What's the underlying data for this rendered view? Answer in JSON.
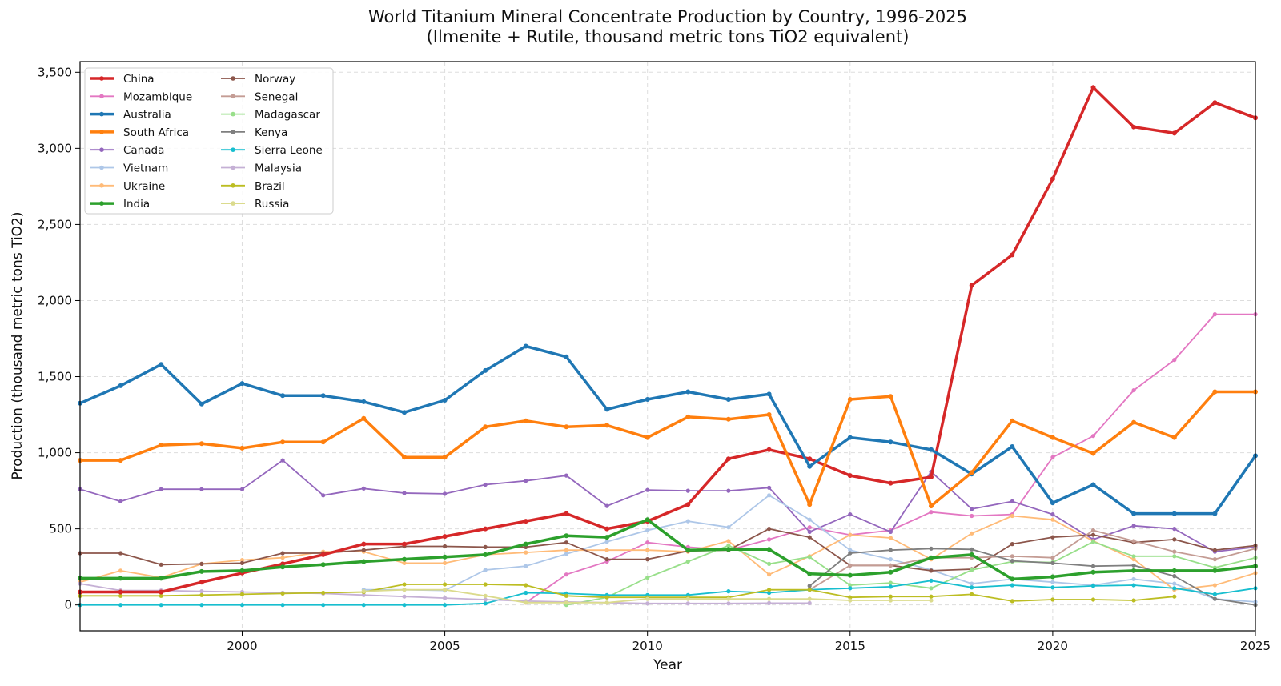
{
  "chart_data": {
    "type": "line",
    "title": "World Titanium Mineral Concentrate Production by Country, 1996-2025",
    "subtitle": "(Ilmenite + Rutile, thousand metric tons TiO2 equivalent)",
    "xlabel": "Year",
    "ylabel": "Production (thousand metric tons TiO2)",
    "xlim": [
      1996,
      2025
    ],
    "ylim": [
      -170,
      3570
    ],
    "x_ticks": [
      2000,
      2005,
      2010,
      2015,
      2020,
      2025
    ],
    "x_tick_labels": [
      "2000",
      "2005",
      "2010",
      "2015",
      "2020",
      "2025"
    ],
    "y_ticks": [
      0,
      500,
      1000,
      1500,
      2000,
      2500,
      3000,
      3500
    ],
    "y_tick_labels": [
      "0",
      "500",
      "1,000",
      "1,500",
      "2,000",
      "2,500",
      "3,000",
      "3,500"
    ],
    "grid": true,
    "legend_position": "top-left",
    "series": [
      {
        "name": "China",
        "color": "#d62728",
        "bold": true,
        "x": [
          1996,
          1997,
          1998,
          1999,
          2000,
          2001,
          2002,
          2003,
          2004,
          2005,
          2006,
          2007,
          2008,
          2009,
          2010,
          2011,
          2012,
          2013,
          2014,
          2015,
          2016,
          2017,
          2018,
          2019,
          2020,
          2021,
          2022,
          2023,
          2024,
          2025
        ],
        "y": [
          85,
          85,
          85,
          150,
          210,
          270,
          330,
          400,
          400,
          450,
          500,
          550,
          600,
          500,
          550,
          660,
          960,
          1020,
          960,
          850,
          800,
          840,
          2100,
          2300,
          2800,
          3400,
          3140,
          3100,
          3300,
          3200
        ]
      },
      {
        "name": "Mozambique",
        "color": "#e377c2",
        "bold": false,
        "x": [
          2007,
          2008,
          2009,
          2010,
          2011,
          2012,
          2013,
          2014,
          2015,
          2016,
          2017,
          2018,
          2019,
          2020,
          2021,
          2022,
          2023,
          2024,
          2025
        ],
        "y": [
          15,
          200,
          285,
          410,
          380,
          360,
          430,
          510,
          460,
          490,
          610,
          585,
          595,
          970,
          1110,
          1410,
          1610,
          1910,
          1910
        ]
      },
      {
        "name": "Australia",
        "color": "#1f77b4",
        "bold": true,
        "x": [
          1996,
          1997,
          1998,
          1999,
          2000,
          2001,
          2002,
          2003,
          2004,
          2005,
          2006,
          2007,
          2008,
          2009,
          2010,
          2011,
          2012,
          2013,
          2014,
          2015,
          2016,
          2017,
          2018,
          2019,
          2020,
          2021,
          2022,
          2023,
          2024,
          2025
        ],
        "y": [
          1325,
          1440,
          1580,
          1320,
          1455,
          1375,
          1375,
          1335,
          1265,
          1345,
          1540,
          1700,
          1630,
          1285,
          1350,
          1400,
          1350,
          1385,
          910,
          1100,
          1070,
          1020,
          860,
          1040,
          670,
          790,
          600,
          600,
          600,
          980
        ]
      },
      {
        "name": "South Africa",
        "color": "#ff7f0e",
        "bold": true,
        "x": [
          1996,
          1997,
          1998,
          1999,
          2000,
          2001,
          2002,
          2003,
          2004,
          2005,
          2006,
          2007,
          2008,
          2009,
          2010,
          2011,
          2012,
          2013,
          2014,
          2015,
          2016,
          2017,
          2018,
          2019,
          2020,
          2021,
          2022,
          2023,
          2024,
          2025
        ],
        "y": [
          950,
          950,
          1050,
          1060,
          1030,
          1070,
          1070,
          1225,
          970,
          970,
          1170,
          1210,
          1170,
          1180,
          1100,
          1235,
          1220,
          1250,
          660,
          1350,
          1370,
          650,
          870,
          1210,
          1100,
          995,
          1200,
          1100,
          1400,
          1400
        ]
      },
      {
        "name": "Canada",
        "color": "#9467bd",
        "bold": false,
        "x": [
          1996,
          1997,
          1998,
          1999,
          2000,
          2001,
          2002,
          2003,
          2004,
          2005,
          2006,
          2007,
          2008,
          2009,
          2010,
          2011,
          2012,
          2013,
          2014,
          2015,
          2016,
          2017,
          2018,
          2019,
          2020,
          2021,
          2022,
          2023,
          2024,
          2025
        ],
        "y": [
          760,
          680,
          760,
          760,
          760,
          950,
          720,
          765,
          735,
          730,
          790,
          815,
          850,
          650,
          755,
          750,
          750,
          770,
          480,
          595,
          480,
          875,
          630,
          680,
          595,
          430,
          520,
          500,
          350,
          380
        ]
      },
      {
        "name": "Vietnam",
        "color": "#aec7e8",
        "bold": false,
        "x": [
          2003,
          2004,
          2005,
          2006,
          2007,
          2008,
          2009,
          2010,
          2011,
          2012,
          2013,
          2014,
          2015,
          2016,
          2017,
          2018,
          2019,
          2020,
          2021,
          2022,
          2023,
          2024,
          2025
        ],
        "y": [
          100,
          100,
          95,
          230,
          255,
          335,
          415,
          490,
          550,
          510,
          720,
          560,
          360,
          300,
          230,
          140,
          170,
          150,
          130,
          170,
          140,
          40,
          20
        ]
      },
      {
        "name": "Ukraine",
        "color": "#ffbb78",
        "bold": false,
        "x": [
          1996,
          1997,
          1998,
          1999,
          2000,
          2001,
          2002,
          2003,
          2004,
          2005,
          2006,
          2007,
          2008,
          2009,
          2010,
          2011,
          2012,
          2013,
          2014,
          2015,
          2016,
          2017,
          2018,
          2019,
          2020,
          2021,
          2022,
          2023,
          2024,
          2025
        ],
        "y": [
          150,
          225,
          180,
          270,
          295,
          310,
          350,
          350,
          275,
          275,
          330,
          345,
          360,
          360,
          360,
          350,
          420,
          200,
          320,
          460,
          440,
          300,
          470,
          585,
          560,
          420,
          300,
          100,
          130,
          210
        ]
      },
      {
        "name": "India",
        "color": "#2ca02c",
        "bold": true,
        "x": [
          1996,
          1997,
          1998,
          1999,
          2000,
          2001,
          2002,
          2003,
          2004,
          2005,
          2006,
          2007,
          2008,
          2009,
          2010,
          2011,
          2012,
          2013,
          2014,
          2015,
          2016,
          2017,
          2018,
          2019,
          2020,
          2021,
          2022,
          2023,
          2024,
          2025
        ],
        "y": [
          175,
          175,
          175,
          220,
          225,
          250,
          265,
          285,
          300,
          315,
          330,
          400,
          455,
          445,
          560,
          360,
          365,
          365,
          205,
          195,
          215,
          310,
          330,
          170,
          185,
          215,
          225,
          225,
          225,
          255
        ]
      },
      {
        "name": "Norway",
        "color": "#8c564b",
        "bold": false,
        "x": [
          1996,
          1997,
          1998,
          1999,
          2000,
          2001,
          2002,
          2003,
          2004,
          2005,
          2006,
          2007,
          2008,
          2009,
          2010,
          2011,
          2012,
          2013,
          2014,
          2015,
          2016,
          2017,
          2018,
          2019,
          2020,
          2021,
          2022,
          2023,
          2024,
          2025
        ],
        "y": [
          340,
          340,
          265,
          270,
          275,
          340,
          340,
          360,
          385,
          385,
          380,
          380,
          410,
          300,
          300,
          355,
          360,
          500,
          445,
          260,
          260,
          225,
          235,
          400,
          445,
          460,
          410,
          430,
          360,
          390
        ]
      },
      {
        "name": "Senegal",
        "color": "#c49c94",
        "bold": false,
        "x": [
          2014,
          2015,
          2016,
          2017,
          2018,
          2019,
          2020,
          2021,
          2022,
          2023,
          2024,
          2025
        ],
        "y": [
          100,
          260,
          260,
          310,
          310,
          320,
          310,
          490,
          420,
          350,
          300,
          370
        ]
      },
      {
        "name": "Madagascar",
        "color": "#98df8a",
        "bold": false,
        "x": [
          2008,
          2009,
          2010,
          2011,
          2012,
          2013,
          2014,
          2015,
          2016,
          2017,
          2018,
          2019,
          2020,
          2021,
          2022,
          2023,
          2024,
          2025
        ],
        "y": [
          0,
          50,
          180,
          285,
          390,
          270,
          315,
          130,
          145,
          110,
          230,
          285,
          280,
          415,
          320,
          320,
          245,
          310
        ]
      },
      {
        "name": "Kenya",
        "color": "#7f7f7f",
        "bold": false,
        "x": [
          2014,
          2015,
          2016,
          2017,
          2018,
          2019,
          2020,
          2021,
          2022,
          2023,
          2024,
          2025
        ],
        "y": [
          125,
          340,
          360,
          370,
          365,
          290,
          275,
          255,
          260,
          190,
          40,
          0
        ]
      },
      {
        "name": "Sierra Leone",
        "color": "#17becf",
        "bold": false,
        "x": [
          1996,
          1997,
          1998,
          1999,
          2000,
          2001,
          2002,
          2003,
          2004,
          2005,
          2006,
          2007,
          2008,
          2009,
          2010,
          2011,
          2012,
          2013,
          2014,
          2015,
          2016,
          2017,
          2018,
          2019,
          2020,
          2021,
          2022,
          2023,
          2024,
          2025
        ],
        "y": [
          0,
          0,
          0,
          0,
          0,
          0,
          0,
          0,
          0,
          0,
          10,
          80,
          75,
          65,
          65,
          65,
          90,
          80,
          100,
          110,
          120,
          160,
          115,
          130,
          115,
          125,
          130,
          110,
          70,
          110
        ]
      },
      {
        "name": "Malaysia",
        "color": "#c5b0d5",
        "bold": false,
        "x": [
          1996,
          1997,
          1998,
          1999,
          2000,
          2001,
          2002,
          2003,
          2004,
          2005,
          2006,
          2007,
          2008,
          2009,
          2010,
          2011,
          2012,
          2013,
          2014
        ],
        "y": [
          140,
          95,
          95,
          90,
          85,
          80,
          75,
          65,
          55,
          45,
          35,
          25,
          20,
          15,
          10,
          10,
          10,
          12,
          12
        ]
      },
      {
        "name": "Brazil",
        "color": "#bcbd22",
        "bold": false,
        "x": [
          1996,
          1997,
          1998,
          1999,
          2000,
          2001,
          2002,
          2003,
          2004,
          2005,
          2006,
          2007,
          2008,
          2009,
          2010,
          2011,
          2012,
          2013,
          2014,
          2015,
          2016,
          2017,
          2018,
          2019,
          2020,
          2021,
          2022,
          2023
        ],
        "y": [
          60,
          60,
          60,
          65,
          70,
          75,
          80,
          85,
          135,
          135,
          135,
          130,
          60,
          50,
          50,
          50,
          50,
          100,
          100,
          50,
          55,
          55,
          70,
          25,
          35,
          35,
          30,
          55
        ]
      },
      {
        "name": "Russia",
        "color": "#dbdb8d",
        "bold": false,
        "x": [
          2003,
          2004,
          2005,
          2006,
          2007,
          2008,
          2009,
          2010,
          2011,
          2012,
          2013,
          2014,
          2015,
          2016,
          2017
        ],
        "y": [
          90,
          100,
          100,
          60,
          15,
          15,
          15,
          40,
          40,
          40,
          40,
          40,
          30,
          30,
          30
        ]
      }
    ]
  }
}
